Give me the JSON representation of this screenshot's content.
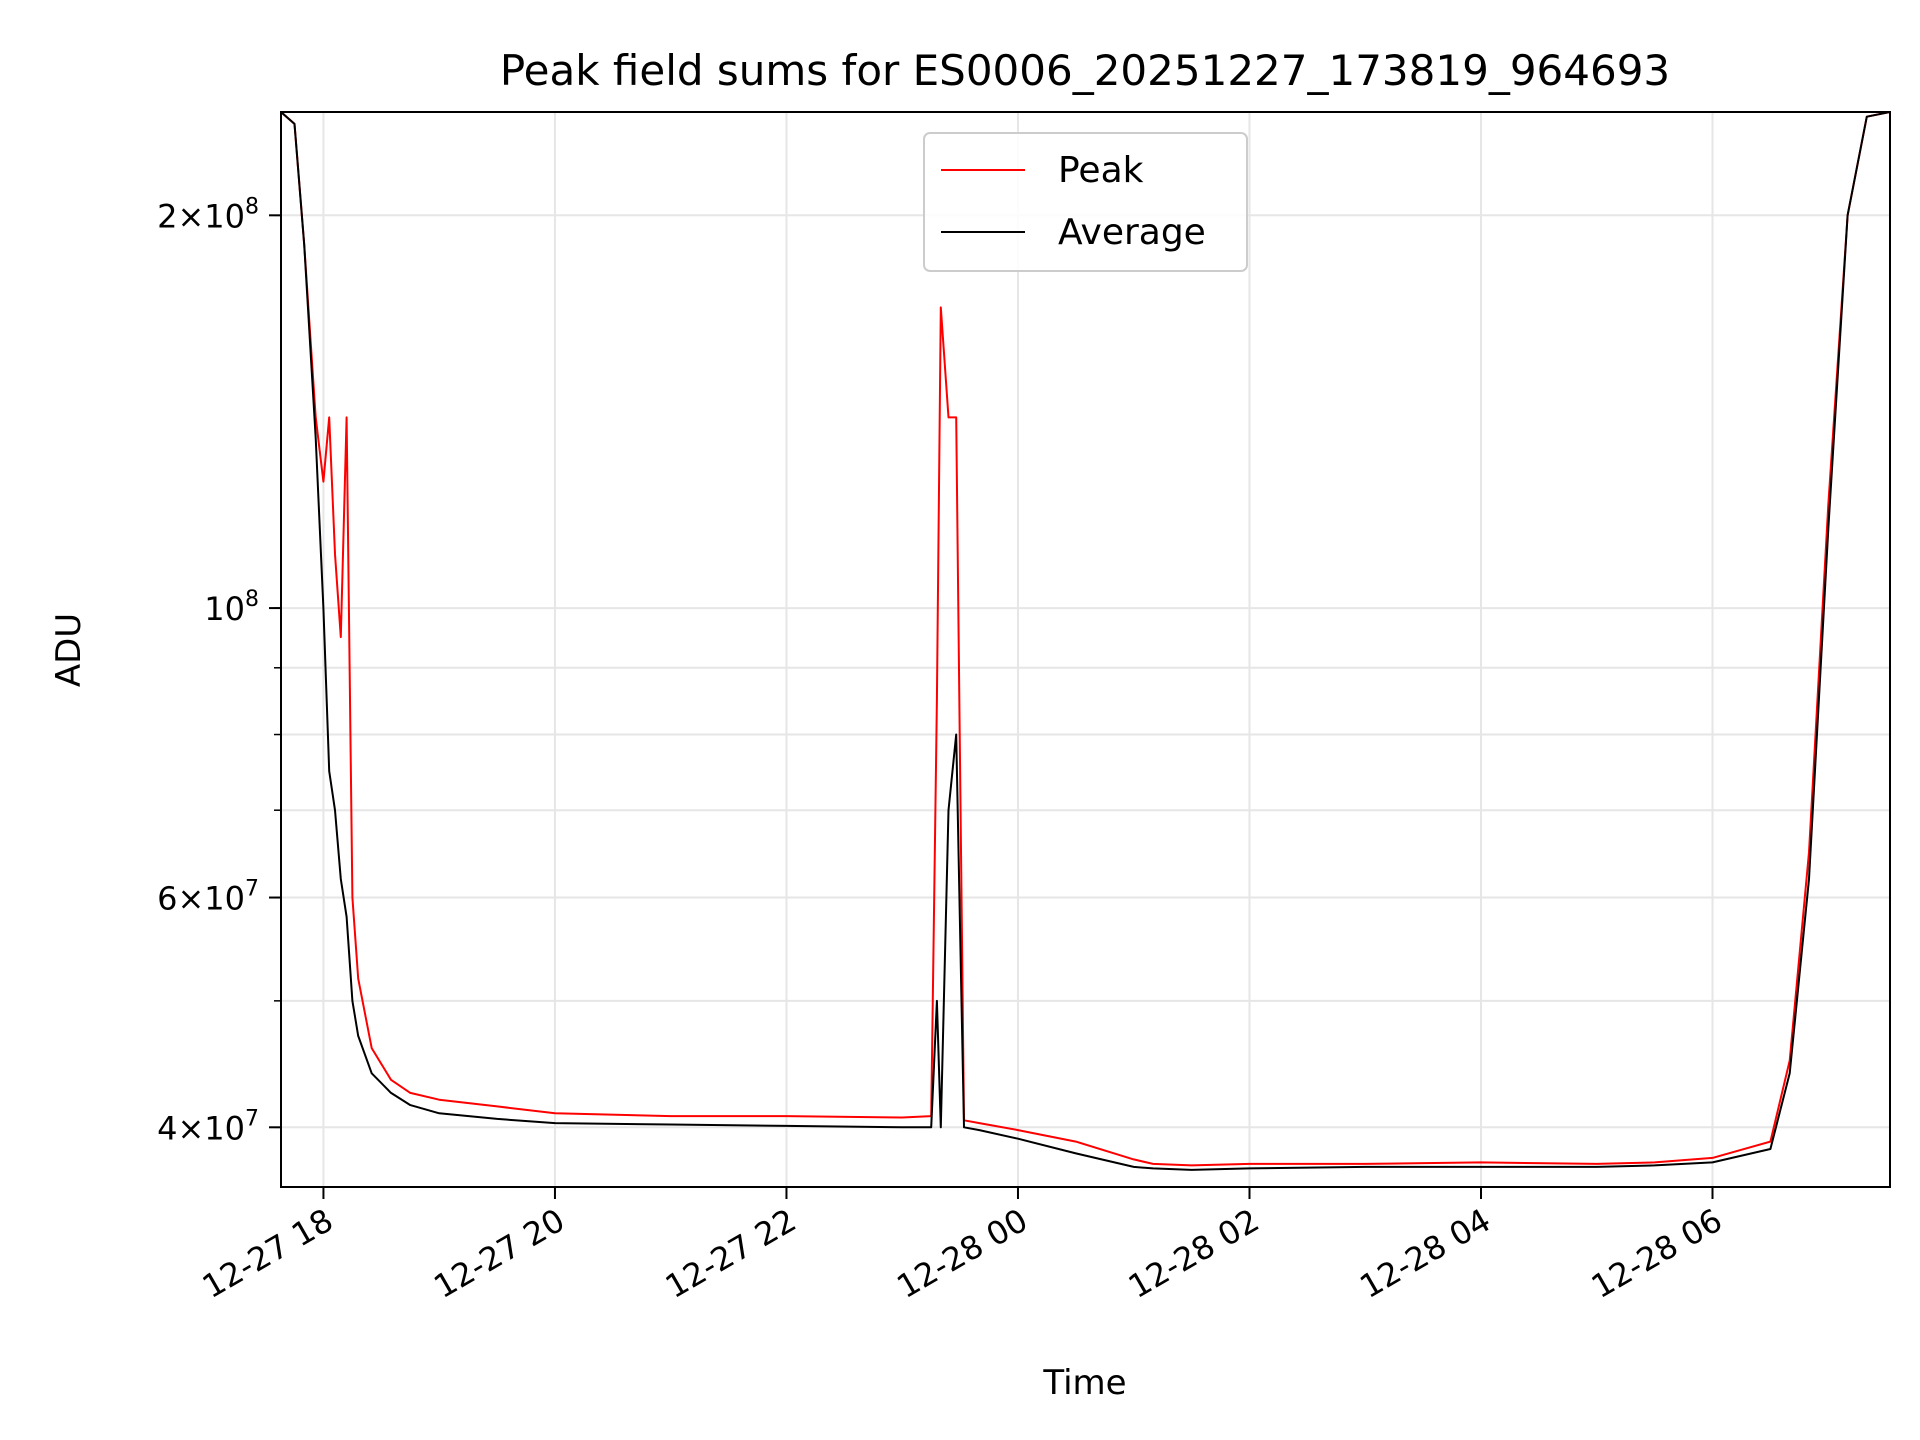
{
  "chart_data": {
    "type": "line",
    "title": "Peak field sums for ES0006_20251227_173819_964693",
    "xlabel": "Time",
    "ylabel": "ADU",
    "yscale": "log",
    "grid": true,
    "legend_position": "top-center",
    "x_ticks": [
      "12-27 18",
      "12-27 20",
      "12-27 22",
      "12-28 00",
      "12-28 02",
      "12-28 04",
      "12-28 06"
    ],
    "x_tick_values": [
      "2025-12-27 18:00",
      "2025-12-27 20:00",
      "2025-12-27 22:00",
      "2025-12-28 00:00",
      "2025-12-28 02:00",
      "2025-12-28 04:00",
      "2025-12-28 06:00"
    ],
    "xlim": [
      "2025-12-27 17:38",
      "2025-12-28 07:32"
    ],
    "y_ticks": [
      {
        "value": 200000000,
        "mantissa": "2",
        "exponent": "8"
      },
      {
        "value": 100000000,
        "mantissa": "",
        "exponent": "8"
      },
      {
        "value": 60000000,
        "mantissa": "6",
        "exponent": "7"
      },
      {
        "value": 40000000,
        "mantissa": "4",
        "exponent": "7"
      }
    ],
    "ylim": [
      36000000,
      240000000
    ],
    "series": [
      {
        "name": "Peak",
        "color": "#ff0000",
        "x": [
          "2025-12-27 17:38",
          "2025-12-27 17:45",
          "2025-12-27 17:50",
          "2025-12-27 17:56",
          "2025-12-27 18:00",
          "2025-12-27 18:03",
          "2025-12-27 18:06",
          "2025-12-27 18:09",
          "2025-12-27 18:12",
          "2025-12-27 18:15",
          "2025-12-27 18:18",
          "2025-12-27 18:25",
          "2025-12-27 18:35",
          "2025-12-27 18:45",
          "2025-12-27 19:00",
          "2025-12-27 19:30",
          "2025-12-27 20:00",
          "2025-12-27 21:00",
          "2025-12-27 22:00",
          "2025-12-27 23:00",
          "2025-12-27 23:15",
          "2025-12-27 23:18",
          "2025-12-27 23:20",
          "2025-12-27 23:24",
          "2025-12-27 23:28",
          "2025-12-27 23:32",
          "2025-12-27 23:40",
          "2025-12-28 00:00",
          "2025-12-28 00:30",
          "2025-12-28 01:00",
          "2025-12-28 01:10",
          "2025-12-28 01:30",
          "2025-12-28 02:00",
          "2025-12-28 03:00",
          "2025-12-28 04:00",
          "2025-12-28 05:00",
          "2025-12-28 05:30",
          "2025-12-28 06:00",
          "2025-12-28 06:30",
          "2025-12-28 06:40",
          "2025-12-28 06:50",
          "2025-12-28 07:00",
          "2025-12-28 07:10",
          "2025-12-28 07:20",
          "2025-12-28 07:32"
        ],
        "y": [
          240000000,
          235000000,
          190000000,
          140000000,
          125000000,
          140000000,
          110000000,
          95000000,
          140000000,
          60000000,
          52000000,
          46000000,
          43500000,
          42500000,
          42000000,
          41500000,
          41000000,
          40800000,
          40800000,
          40700000,
          40800000,
          85000000,
          170000000,
          140000000,
          140000000,
          40500000,
          40300000,
          39800000,
          39000000,
          37800000,
          37500000,
          37400000,
          37500000,
          37500000,
          37600000,
          37500000,
          37600000,
          37900000,
          39000000,
          45000000,
          65000000,
          120000000,
          200000000,
          238000000,
          240000000
        ]
      },
      {
        "name": "Average",
        "color": "#000000",
        "x": [
          "2025-12-27 17:38",
          "2025-12-27 17:45",
          "2025-12-27 17:50",
          "2025-12-27 17:56",
          "2025-12-27 18:00",
          "2025-12-27 18:03",
          "2025-12-27 18:06",
          "2025-12-27 18:09",
          "2025-12-27 18:12",
          "2025-12-27 18:15",
          "2025-12-27 18:18",
          "2025-12-27 18:25",
          "2025-12-27 18:35",
          "2025-12-27 18:45",
          "2025-12-27 19:00",
          "2025-12-27 19:30",
          "2025-12-27 20:00",
          "2025-12-27 21:00",
          "2025-12-27 22:00",
          "2025-12-27 23:00",
          "2025-12-27 23:15",
          "2025-12-27 23:18",
          "2025-12-27 23:20",
          "2025-12-27 23:24",
          "2025-12-27 23:28",
          "2025-12-27 23:32",
          "2025-12-27 23:40",
          "2025-12-28 00:00",
          "2025-12-28 00:30",
          "2025-12-28 01:00",
          "2025-12-28 01:10",
          "2025-12-28 01:30",
          "2025-12-28 02:00",
          "2025-12-28 03:00",
          "2025-12-28 04:00",
          "2025-12-28 05:00",
          "2025-12-28 05:30",
          "2025-12-28 06:00",
          "2025-12-28 06:30",
          "2025-12-28 06:40",
          "2025-12-28 06:50",
          "2025-12-28 07:00",
          "2025-12-28 07:10",
          "2025-12-28 07:20",
          "2025-12-28 07:32"
        ],
        "y": [
          240000000,
          235000000,
          190000000,
          135000000,
          100000000,
          75000000,
          70000000,
          62000000,
          58000000,
          50000000,
          47000000,
          44000000,
          42500000,
          41600000,
          41000000,
          40600000,
          40300000,
          40200000,
          40100000,
          40000000,
          40000000,
          50000000,
          40000000,
          70000000,
          80000000,
          40000000,
          39800000,
          39200000,
          38200000,
          37300000,
          37200000,
          37100000,
          37200000,
          37300000,
          37300000,
          37300000,
          37400000,
          37600000,
          38500000,
          44000000,
          62000000,
          115000000,
          200000000,
          238000000,
          240000000
        ]
      }
    ]
  }
}
